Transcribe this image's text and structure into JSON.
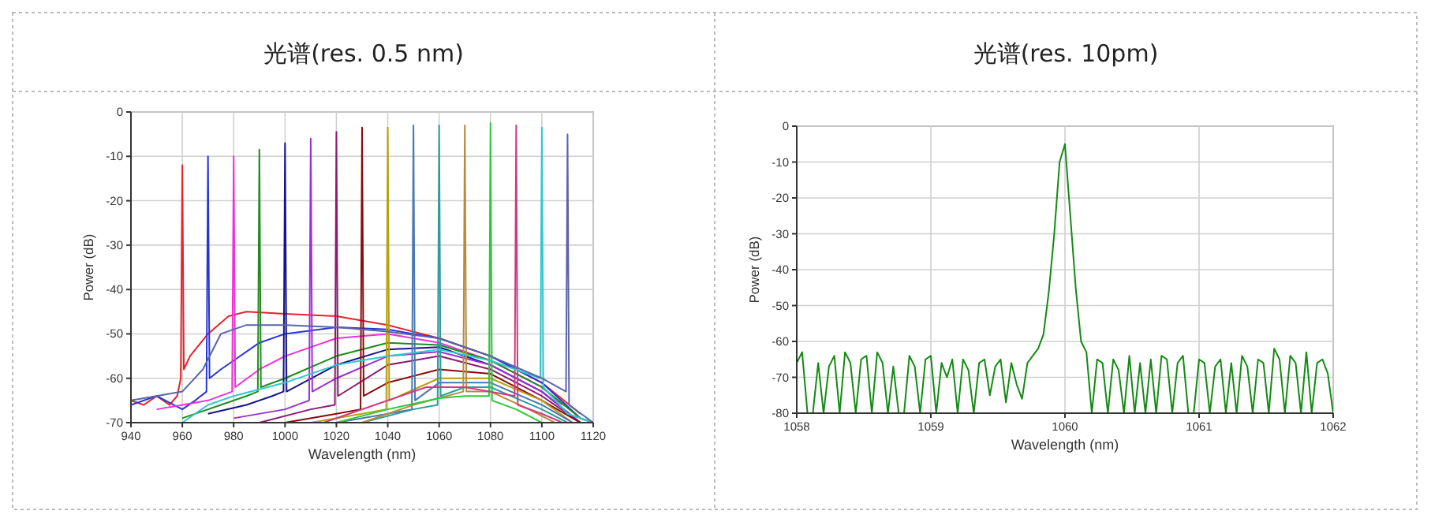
{
  "chart_data": [
    {
      "type": "line",
      "title": "光谱(res. 0.5 nm)",
      "xlabel": "Wavelength (nm)",
      "ylabel": "Power (dB)",
      "xlim": [
        940,
        1120
      ],
      "ylim": [
        -70,
        0
      ],
      "xticks": [
        940,
        960,
        980,
        1000,
        1020,
        1040,
        1060,
        1080,
        1100,
        1120
      ],
      "yticks": [
        -70,
        -60,
        -50,
        -40,
        -30,
        -20,
        -10,
        0
      ],
      "grid": true,
      "series": [
        {
          "color": "#e8222a",
          "x": [
            940,
            945,
            950,
            955,
            958,
            959.4,
            960,
            960.6,
            963,
            970,
            978,
            985,
            1000,
            1020,
            1040,
            1060,
            1080,
            1100,
            1115
          ],
          "values": [
            -65,
            -66,
            -64,
            -66,
            -64,
            -60,
            -12,
            -58,
            -55,
            -50,
            -46,
            -45,
            -45.5,
            -46,
            -48,
            -51,
            -55,
            -61,
            -68
          ]
        },
        {
          "color": "#2636d6",
          "x": [
            940,
            950,
            960,
            965,
            969.4,
            970,
            970.6,
            975,
            980,
            990,
            1000,
            1020,
            1040,
            1060,
            1080,
            1100,
            1115,
            1120
          ],
          "values": [
            -66,
            -64,
            -67,
            -65,
            -63,
            -10,
            -60,
            -58,
            -56,
            -52,
            -50,
            -48.5,
            -49,
            -51,
            -55,
            -61,
            -69,
            -70
          ]
        },
        {
          "color": "#f030d8",
          "x": [
            950,
            960,
            970,
            979.4,
            980,
            980.6,
            990,
            1000,
            1020,
            1040,
            1060,
            1080,
            1100,
            1108
          ],
          "values": [
            -67,
            -66,
            -65,
            -63,
            -10,
            -62,
            -58,
            -55,
            -51,
            -50,
            -52,
            -56,
            -62,
            -66
          ]
        },
        {
          "color": "#1e8c1e",
          "x": [
            960,
            975,
            985,
            989.4,
            990,
            990.6,
            1000,
            1020,
            1040,
            1060,
            1080,
            1100,
            1115,
            1120
          ],
          "values": [
            -69,
            -66,
            -64,
            -63,
            -8.5,
            -62,
            -60,
            -55,
            -52,
            -52.5,
            -56,
            -62,
            -69,
            -70
          ]
        },
        {
          "color": "#14148c",
          "x": [
            970,
            985,
            995,
            999.4,
            1000,
            1000.6,
            1020,
            1040,
            1060,
            1080,
            1100,
            1115
          ],
          "values": [
            -68,
            -66,
            -64,
            -63,
            -7,
            -63,
            -57,
            -53.5,
            -53,
            -57,
            -63,
            -70
          ]
        },
        {
          "color": "#9a30d0",
          "x": [
            980,
            1000,
            1009.4,
            1010,
            1010.6,
            1020,
            1040,
            1060,
            1080,
            1100,
            1115
          ],
          "values": [
            -69,
            -67,
            -65,
            -6,
            -63,
            -60,
            -55,
            -54,
            -57,
            -63,
            -70
          ]
        },
        {
          "color": "#8c1a70",
          "x": [
            990,
            1010,
            1019.4,
            1020,
            1020.6,
            1040,
            1060,
            1080,
            1100,
            1115
          ],
          "values": [
            -70,
            -67,
            -66,
            -4.5,
            -64,
            -57,
            -55,
            -58,
            -64,
            -70
          ]
        },
        {
          "color": "#8b0a0a",
          "x": [
            1000,
            1020,
            1029.4,
            1030,
            1030.6,
            1040,
            1060,
            1080,
            1100,
            1115
          ],
          "values": [
            -70,
            -68,
            -67,
            -3.5,
            -64,
            -61,
            -58,
            -59,
            -65,
            -70
          ]
        },
        {
          "color": "#b8a010",
          "x": [
            1010,
            1030,
            1039.4,
            1040,
            1040.6,
            1060,
            1080,
            1100,
            1112
          ],
          "values": [
            -70,
            -68,
            -67,
            -3.5,
            -65,
            -60,
            -60,
            -65,
            -70
          ]
        },
        {
          "color": "#4a78b4",
          "x": [
            1020,
            1040,
            1049.4,
            1050,
            1050.6,
            1060,
            1080,
            1100,
            1112
          ],
          "values": [
            -70,
            -68,
            -67,
            -3,
            -65,
            -61,
            -61,
            -66,
            -70
          ]
        },
        {
          "color": "#2e9c9c",
          "x": [
            1030,
            1050,
            1059.4,
            1060,
            1060.6,
            1070,
            1080,
            1100,
            1110
          ],
          "values": [
            -70,
            -67,
            -66,
            -3,
            -64,
            -62,
            -62,
            -67,
            -70
          ]
        },
        {
          "color": "#b88a3c",
          "x": [
            1030,
            1050,
            1069.4,
            1070,
            1070.6,
            1080,
            1095,
            1105
          ],
          "values": [
            -70,
            -66,
            -63,
            -3,
            -63,
            -63,
            -67,
            -70
          ]
        },
        {
          "color": "#2ec83c",
          "x": [
            1020,
            1040,
            1060,
            1070,
            1079.4,
            1080,
            1080.6,
            1090,
            1100
          ],
          "values": [
            -70,
            -67,
            -64.5,
            -64,
            -64,
            -2.5,
            -65,
            -67,
            -70
          ]
        },
        {
          "color": "#d03a80",
          "x": [
            1015,
            1035,
            1055,
            1070,
            1089.4,
            1090,
            1090.6,
            1100,
            1108
          ],
          "values": [
            -70,
            -66,
            -62,
            -62,
            -64,
            -3,
            -66,
            -68,
            -70
          ]
        },
        {
          "color": "#30c8d0",
          "x": [
            960,
            970,
            980,
            1000,
            1020,
            1040,
            1060,
            1080,
            1099.4,
            1100,
            1100.6,
            1110,
            1120
          ],
          "values": [
            -70,
            -66,
            -64,
            -61,
            -57,
            -55,
            -53.5,
            -56,
            -60,
            -3.5,
            -62,
            -68,
            -70
          ]
        },
        {
          "color": "#5a64a8",
          "x": [
            940,
            950,
            960,
            968,
            975,
            985,
            1000,
            1020,
            1040,
            1060,
            1080,
            1100,
            1109.4,
            1110,
            1110.6,
            1120
          ],
          "values": [
            -65,
            -64,
            -63,
            -58,
            -50,
            -48,
            -48,
            -48.5,
            -49.5,
            -51,
            -55,
            -60,
            -63,
            -5,
            -66,
            -70
          ]
        }
      ]
    },
    {
      "type": "line",
      "title": "光谱(res. 10pm)",
      "xlabel": "Wavelength (nm)",
      "ylabel": "Power (dB)",
      "xlim": [
        1058,
        1062
      ],
      "ylim": [
        -80,
        0
      ],
      "xticks": [
        1058,
        1059,
        1060,
        1061,
        1062
      ],
      "yticks": [
        -80,
        -70,
        -60,
        -50,
        -40,
        -30,
        -20,
        -10,
        0
      ],
      "grid": true,
      "series": [
        {
          "color": "#138a13",
          "x": [
            1058,
            1058.04,
            1058.08,
            1058.12,
            1058.16,
            1058.2,
            1058.24,
            1058.28,
            1058.32,
            1058.36,
            1058.4,
            1058.44,
            1058.48,
            1058.52,
            1058.56,
            1058.6,
            1058.64,
            1058.68,
            1058.72,
            1058.76,
            1058.8,
            1058.84,
            1058.88,
            1058.92,
            1058.96,
            1059,
            1059.04,
            1059.08,
            1059.12,
            1059.16,
            1059.2,
            1059.24,
            1059.28,
            1059.32,
            1059.36,
            1059.4,
            1059.44,
            1059.48,
            1059.52,
            1059.56,
            1059.6,
            1059.64,
            1059.68,
            1059.72,
            1059.76,
            1059.8,
            1059.84,
            1059.88,
            1059.92,
            1059.96,
            1060,
            1060.04,
            1060.08,
            1060.12,
            1060.16,
            1060.2,
            1060.24,
            1060.28,
            1060.32,
            1060.36,
            1060.4,
            1060.44,
            1060.48,
            1060.52,
            1060.56,
            1060.6,
            1060.64,
            1060.68,
            1060.72,
            1060.76,
            1060.8,
            1060.84,
            1060.88,
            1060.92,
            1060.96,
            1061,
            1061.04,
            1061.08,
            1061.12,
            1061.16,
            1061.2,
            1061.24,
            1061.28,
            1061.32,
            1061.36,
            1061.4,
            1061.44,
            1061.48,
            1061.52,
            1061.56,
            1061.6,
            1061.64,
            1061.68,
            1061.72,
            1061.76,
            1061.8,
            1061.84,
            1061.88,
            1061.92,
            1061.96,
            1062
          ],
          "values": [
            -66,
            -63,
            -80,
            -80,
            -66,
            -80,
            -67,
            -64,
            -80,
            -63,
            -66,
            -80,
            -65,
            -64,
            -80,
            -63,
            -66,
            -80,
            -67,
            -80,
            -80,
            -64,
            -67,
            -80,
            -65,
            -64,
            -80,
            -66,
            -70,
            -65,
            -80,
            -65,
            -68,
            -80,
            -66,
            -65,
            -75,
            -67,
            -65,
            -77,
            -66,
            -72,
            -76,
            -66,
            -64,
            -62,
            -58,
            -46,
            -30,
            -10,
            -5,
            -25,
            -45,
            -60,
            -63,
            -80,
            -65,
            -66,
            -80,
            -65,
            -68,
            -80,
            -64,
            -80,
            -66,
            -80,
            -65,
            -80,
            -64,
            -65,
            -80,
            -66,
            -64,
            -80,
            -80,
            -65,
            -66,
            -80,
            -67,
            -65,
            -80,
            -66,
            -80,
            -64,
            -67,
            -80,
            -65,
            -66,
            -80,
            -62,
            -65,
            -80,
            -64,
            -66,
            -80,
            -63,
            -80,
            -66,
            -65,
            -69,
            -80
          ]
        }
      ]
    }
  ]
}
